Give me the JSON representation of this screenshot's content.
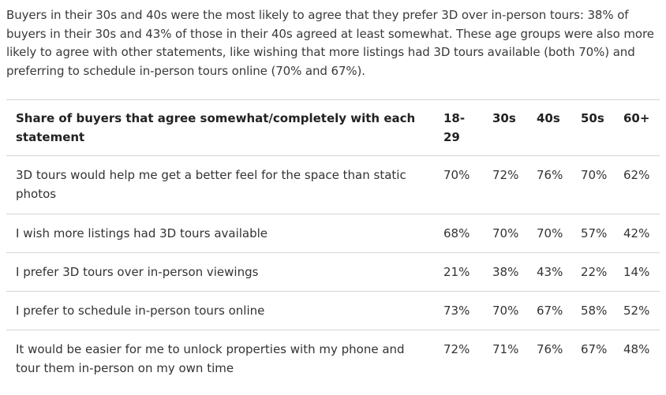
{
  "intro_text": "Buyers in their 30s and 40s were the most likely to agree that they prefer 3D over in-person tours: 38% of buyers in their 30s and 43% of those in their 40s agreed at least somewhat. These age groups were also more likely to agree with other statements, like wishing that more listings had 3D tours available (both 70%) and preferring to schedule in-person tours online (70% and 67%).",
  "table": {
    "header": {
      "label": "Share of buyers that agree somewhat/completely with each statement",
      "cols": [
        "18-29",
        "30s",
        "40s",
        "50s",
        "60+"
      ]
    },
    "rows": [
      {
        "label": "3D tours would help me get a better feel for the space than static photos",
        "values": [
          "70%",
          "72%",
          "76%",
          "70%",
          "62%"
        ]
      },
      {
        "label": "I wish more listings had 3D tours available",
        "values": [
          "68%",
          "70%",
          "70%",
          "57%",
          "42%"
        ]
      },
      {
        "label": "I prefer 3D tours over in-person viewings",
        "values": [
          "21%",
          "38%",
          "43%",
          "22%",
          "14%"
        ]
      },
      {
        "label": "I prefer to schedule in-person tours online",
        "values": [
          "73%",
          "70%",
          "67%",
          "58%",
          "52%"
        ]
      },
      {
        "label": "It would be easier for me to unlock properties with my phone and tour them in-person on my own time",
        "values": [
          "72%",
          "71%",
          "76%",
          "67%",
          "48%"
        ]
      }
    ]
  }
}
